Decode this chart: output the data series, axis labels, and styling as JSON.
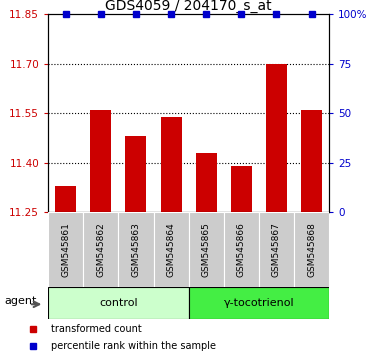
{
  "title": "GDS4059 / 204170_s_at",
  "samples": [
    "GSM545861",
    "GSM545862",
    "GSM545863",
    "GSM545864",
    "GSM545865",
    "GSM545866",
    "GSM545867",
    "GSM545868"
  ],
  "bar_values": [
    11.33,
    11.56,
    11.48,
    11.54,
    11.43,
    11.39,
    11.7,
    11.56
  ],
  "bar_bottom": 11.25,
  "percentile_values": [
    100,
    100,
    100,
    100,
    100,
    100,
    100,
    100
  ],
  "ylim_left": [
    11.25,
    11.85
  ],
  "ylim_right": [
    0,
    100
  ],
  "yticks_left": [
    11.25,
    11.4,
    11.55,
    11.7,
    11.85
  ],
  "yticks_right": [
    0,
    25,
    50,
    75,
    100
  ],
  "ytick_labels_right": [
    "0",
    "25",
    "50",
    "75",
    "100%"
  ],
  "grid_lines": [
    11.4,
    11.55,
    11.7
  ],
  "bar_color": "#cc0000",
  "dot_color": "#0000cc",
  "control_label": "control",
  "treatment_label": "γ-tocotrienol",
  "control_color": "#ccffcc",
  "treatment_color": "#44ee44",
  "agent_label": "agent",
  "legend_bar_label": "transformed count",
  "legend_dot_label": "percentile rank within the sample",
  "control_indices": [
    0,
    1,
    2,
    3
  ],
  "treatment_indices": [
    4,
    5,
    6,
    7
  ],
  "bar_width": 0.6,
  "sample_box_color": "#cccccc",
  "title_fontsize": 10,
  "tick_fontsize": 7.5,
  "sample_fontsize": 6.5,
  "group_fontsize": 8,
  "legend_fontsize": 7
}
